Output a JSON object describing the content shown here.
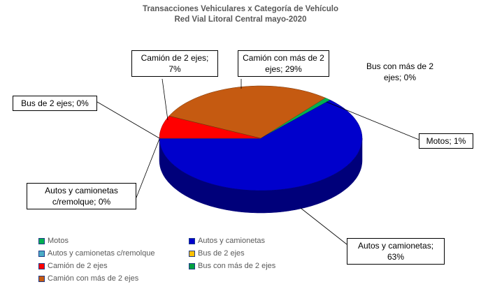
{
  "chart_data": {
    "type": "pie",
    "title": "Transacciones Vehiculares x Categoría de Vehículo",
    "subtitle": "Red Vial Litoral Central mayo-2020",
    "categories": [
      "Motos",
      "Autos y camionetas",
      "Autos y camionetas c/remolque",
      "Bus de 2 ejes",
      "Camión de 2 ejes",
      "Bus con más de 2 ejes",
      "Camión con más de 2 ejes"
    ],
    "values": [
      1,
      63,
      0,
      0,
      7,
      0,
      29
    ],
    "value_labels": [
      "Motos; 1%",
      "Autos y camionetas; 63%",
      "Autos y camionetas c/remolque; 0%",
      "Bus de 2 ejes; 0%",
      "Camión de 2 ejes; 7%",
      "Bus con más de 2 ejes; 0%",
      "Camión con más de 2 ejes; 29%"
    ],
    "colors": [
      "#00b050",
      "#0000cc",
      "#4bacc6",
      "#ffc000",
      "#ff0000",
      "#00a040",
      "#c55a11"
    ],
    "legend": "bottom"
  }
}
